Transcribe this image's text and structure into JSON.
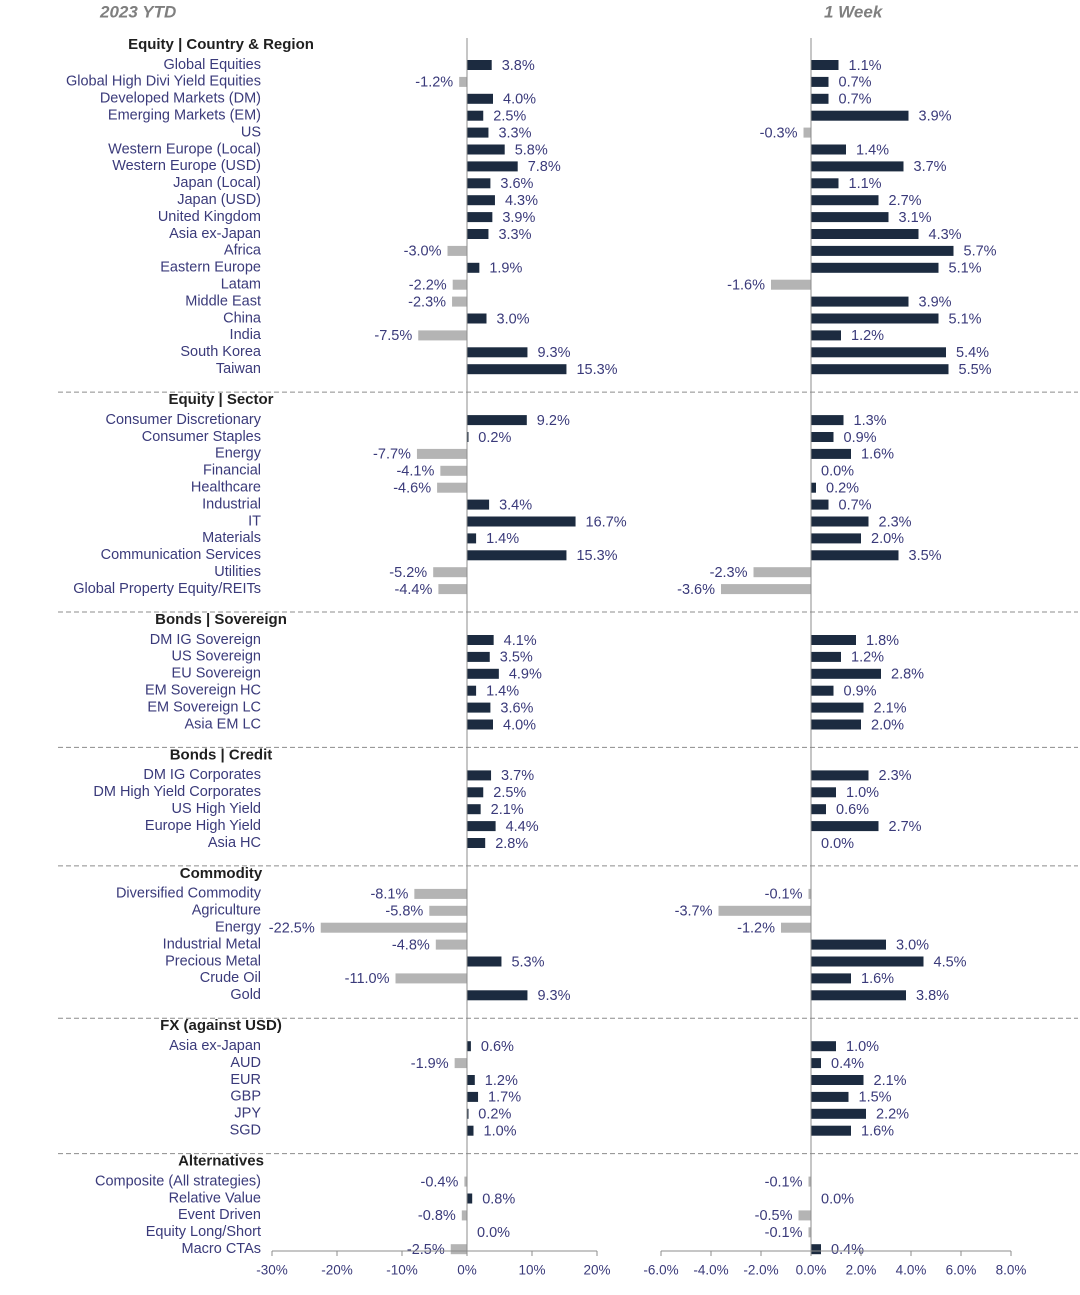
{
  "colors": {
    "positive": "#1c2b40",
    "negative": "#b4b4b4",
    "axis": "#8c8c8c",
    "separator": "#8c8c8c",
    "text": "#3a3a7a"
  },
  "chart_data": {
    "type": "bar",
    "orientation": "horizontal",
    "panels": [
      {
        "title": "2023 YTD",
        "xlim": [
          -30,
          20
        ],
        "ticks": [
          -30,
          -20,
          -10,
          0,
          10,
          20
        ],
        "tick_labels": [
          "-30%",
          "-20%",
          "-10%",
          "0%",
          "10%",
          "20%"
        ]
      },
      {
        "title": "1 Week",
        "xlim": [
          -6,
          8
        ],
        "ticks": [
          -6,
          -4,
          -2,
          0,
          2,
          4,
          6,
          8
        ],
        "tick_labels": [
          "-6.0%",
          "-4.0%",
          "-2.0%",
          "0.0%",
          "2.0%",
          "4.0%",
          "6.0%",
          "8.0%"
        ]
      }
    ],
    "groups": [
      {
        "title": "Equity | Country & Region",
        "rows": [
          {
            "label": "Global Equities",
            "ytd": 3.8,
            "ytd_label": "3.8%",
            "week": 1.1,
            "week_label": "1.1%"
          },
          {
            "label": "Global High Divi Yield Equities",
            "ytd": -1.2,
            "ytd_label": "-1.2%",
            "week": 0.7,
            "week_label": "0.7%"
          },
          {
            "label": "Developed Markets (DM)",
            "ytd": 4.0,
            "ytd_label": "4.0%",
            "week": 0.7,
            "week_label": "0.7%"
          },
          {
            "label": "Emerging Markets (EM)",
            "ytd": 2.5,
            "ytd_label": "2.5%",
            "week": 3.9,
            "week_label": "3.9%"
          },
          {
            "label": "US",
            "ytd": 3.3,
            "ytd_label": "3.3%",
            "week": -0.3,
            "week_label": "-0.3%"
          },
          {
            "label": "Western Europe (Local)",
            "ytd": 5.8,
            "ytd_label": "5.8%",
            "week": 1.4,
            "week_label": "1.4%"
          },
          {
            "label": "Western Europe (USD)",
            "ytd": 7.8,
            "ytd_label": "7.8%",
            "week": 3.7,
            "week_label": "3.7%"
          },
          {
            "label": "Japan (Local)",
            "ytd": 3.6,
            "ytd_label": "3.6%",
            "week": 1.1,
            "week_label": "1.1%"
          },
          {
            "label": "Japan (USD)",
            "ytd": 4.3,
            "ytd_label": "4.3%",
            "week": 2.7,
            "week_label": "2.7%"
          },
          {
            "label": "United Kingdom",
            "ytd": 3.9,
            "ytd_label": "3.9%",
            "week": 3.1,
            "week_label": "3.1%"
          },
          {
            "label": "Asia ex-Japan",
            "ytd": 3.3,
            "ytd_label": "3.3%",
            "week": 4.3,
            "week_label": "4.3%"
          },
          {
            "label": "Africa",
            "ytd": -3.0,
            "ytd_label": "-3.0%",
            "week": 5.7,
            "week_label": "5.7%"
          },
          {
            "label": "Eastern Europe",
            "ytd": 1.9,
            "ytd_label": "1.9%",
            "week": 5.1,
            "week_label": "5.1%"
          },
          {
            "label": "Latam",
            "ytd": -2.2,
            "ytd_label": "-2.2%",
            "week": -1.6,
            "week_label": "-1.6%"
          },
          {
            "label": "Middle East",
            "ytd": -2.3,
            "ytd_label": "-2.3%",
            "week": 3.9,
            "week_label": "3.9%"
          },
          {
            "label": "China",
            "ytd": 3.0,
            "ytd_label": "3.0%",
            "week": 5.1,
            "week_label": "5.1%"
          },
          {
            "label": "India",
            "ytd": -7.5,
            "ytd_label": "-7.5%",
            "week": 1.2,
            "week_label": "1.2%"
          },
          {
            "label": "South Korea",
            "ytd": 9.3,
            "ytd_label": "9.3%",
            "week": 5.4,
            "week_label": "5.4%"
          },
          {
            "label": "Taiwan",
            "ytd": 15.3,
            "ytd_label": "15.3%",
            "week": 5.5,
            "week_label": "5.5%"
          }
        ]
      },
      {
        "title": "Equity | Sector",
        "rows": [
          {
            "label": "Consumer Discretionary",
            "ytd": 9.2,
            "ytd_label": "9.2%",
            "week": 1.3,
            "week_label": "1.3%"
          },
          {
            "label": "Consumer Staples",
            "ytd": 0.2,
            "ytd_label": "0.2%",
            "week": 0.9,
            "week_label": "0.9%"
          },
          {
            "label": "Energy",
            "ytd": -7.7,
            "ytd_label": "-7.7%",
            "week": 1.6,
            "week_label": "1.6%"
          },
          {
            "label": "Financial",
            "ytd": -4.1,
            "ytd_label": "-4.1%",
            "week": 0.0,
            "week_label": "0.0%"
          },
          {
            "label": "Healthcare",
            "ytd": -4.6,
            "ytd_label": "-4.6%",
            "week": 0.2,
            "week_label": "0.2%"
          },
          {
            "label": "Industrial",
            "ytd": 3.4,
            "ytd_label": "3.4%",
            "week": 0.7,
            "week_label": "0.7%"
          },
          {
            "label": "IT",
            "ytd": 16.7,
            "ytd_label": "16.7%",
            "week": 2.3,
            "week_label": "2.3%"
          },
          {
            "label": "Materials",
            "ytd": 1.4,
            "ytd_label": "1.4%",
            "week": 2.0,
            "week_label": "2.0%"
          },
          {
            "label": "Communication Services",
            "ytd": 15.3,
            "ytd_label": "15.3%",
            "week": 3.5,
            "week_label": "3.5%"
          },
          {
            "label": "Utilities",
            "ytd": -5.2,
            "ytd_label": "-5.2%",
            "week": -2.3,
            "week_label": "-2.3%"
          },
          {
            "label": "Global Property Equity/REITs",
            "ytd": -4.4,
            "ytd_label": "-4.4%",
            "week": -3.6,
            "week_label": "-3.6%"
          }
        ]
      },
      {
        "title": "Bonds | Sovereign",
        "rows": [
          {
            "label": "DM IG Sovereign",
            "ytd": 4.1,
            "ytd_label": "4.1%",
            "week": 1.8,
            "week_label": "1.8%"
          },
          {
            "label": "US Sovereign",
            "ytd": 3.5,
            "ytd_label": "3.5%",
            "week": 1.2,
            "week_label": "1.2%"
          },
          {
            "label": "EU Sovereign",
            "ytd": 4.9,
            "ytd_label": "4.9%",
            "week": 2.8,
            "week_label": "2.8%"
          },
          {
            "label": "EM Sovereign HC",
            "ytd": 1.4,
            "ytd_label": "1.4%",
            "week": 0.9,
            "week_label": "0.9%"
          },
          {
            "label": "EM Sovereign LC",
            "ytd": 3.6,
            "ytd_label": "3.6%",
            "week": 2.1,
            "week_label": "2.1%"
          },
          {
            "label": "Asia EM LC",
            "ytd": 4.0,
            "ytd_label": "4.0%",
            "week": 2.0,
            "week_label": "2.0%"
          }
        ]
      },
      {
        "title": "Bonds | Credit",
        "rows": [
          {
            "label": "DM IG Corporates",
            "ytd": 3.7,
            "ytd_label": "3.7%",
            "week": 2.3,
            "week_label": "2.3%"
          },
          {
            "label": "DM High Yield Corporates",
            "ytd": 2.5,
            "ytd_label": "2.5%",
            "week": 1.0,
            "week_label": "1.0%"
          },
          {
            "label": "US High Yield",
            "ytd": 2.1,
            "ytd_label": "2.1%",
            "week": 0.6,
            "week_label": "0.6%"
          },
          {
            "label": "Europe High Yield",
            "ytd": 4.4,
            "ytd_label": "4.4%",
            "week": 2.7,
            "week_label": "2.7%"
          },
          {
            "label": "Asia HC",
            "ytd": 2.8,
            "ytd_label": "2.8%",
            "week": 0.0,
            "week_label": "0.0%"
          }
        ]
      },
      {
        "title": "Commodity",
        "rows": [
          {
            "label": "Diversified Commodity",
            "ytd": -8.1,
            "ytd_label": "-8.1%",
            "week": -0.1,
            "week_label": "-0.1%"
          },
          {
            "label": "Agriculture",
            "ytd": -5.8,
            "ytd_label": "-5.8%",
            "week": -3.7,
            "week_label": "-3.7%"
          },
          {
            "label": "Energy",
            "ytd": -22.5,
            "ytd_label": "-22.5%",
            "week": -1.2,
            "week_label": "-1.2%"
          },
          {
            "label": "Industrial Metal",
            "ytd": -4.8,
            "ytd_label": "-4.8%",
            "week": 3.0,
            "week_label": "3.0%"
          },
          {
            "label": "Precious Metal",
            "ytd": 5.3,
            "ytd_label": "5.3%",
            "week": 4.5,
            "week_label": "4.5%"
          },
          {
            "label": "Crude Oil",
            "ytd": -11.0,
            "ytd_label": "-11.0%",
            "week": 1.6,
            "week_label": "1.6%"
          },
          {
            "label": "Gold",
            "ytd": 9.3,
            "ytd_label": "9.3%",
            "week": 3.8,
            "week_label": "3.8%"
          }
        ]
      },
      {
        "title": "FX (against USD)",
        "rows": [
          {
            "label": "Asia ex-Japan",
            "ytd": 0.6,
            "ytd_label": "0.6%",
            "week": 1.0,
            "week_label": "1.0%"
          },
          {
            "label": "AUD",
            "ytd": -1.9,
            "ytd_label": "-1.9%",
            "week": 0.4,
            "week_label": "0.4%"
          },
          {
            "label": "EUR",
            "ytd": 1.2,
            "ytd_label": "1.2%",
            "week": 2.1,
            "week_label": "2.1%"
          },
          {
            "label": "GBP",
            "ytd": 1.7,
            "ytd_label": "1.7%",
            "week": 1.5,
            "week_label": "1.5%"
          },
          {
            "label": "JPY",
            "ytd": 0.2,
            "ytd_label": "0.2%",
            "week": 2.2,
            "week_label": "2.2%"
          },
          {
            "label": "SGD",
            "ytd": 1.0,
            "ytd_label": "1.0%",
            "week": 1.6,
            "week_label": "1.6%"
          }
        ]
      },
      {
        "title": "Alternatives",
        "rows": [
          {
            "label": "Composite (All strategies)",
            "ytd": -0.4,
            "ytd_label": "-0.4%",
            "week": -0.1,
            "week_label": "-0.1%"
          },
          {
            "label": "Relative Value",
            "ytd": 0.8,
            "ytd_label": "0.8%",
            "week": 0.0,
            "week_label": "0.0%"
          },
          {
            "label": "Event Driven",
            "ytd": -0.8,
            "ytd_label": "-0.8%",
            "week": -0.5,
            "week_label": "-0.5%"
          },
          {
            "label": "Equity Long/Short",
            "ytd": 0.0,
            "ytd_label": "0.0%",
            "week": -0.1,
            "week_label": "-0.1%"
          },
          {
            "label": "Macro CTAs",
            "ytd": -2.5,
            "ytd_label": "-2.5%",
            "week": 0.4,
            "week_label": "0.4%"
          }
        ]
      }
    ]
  }
}
